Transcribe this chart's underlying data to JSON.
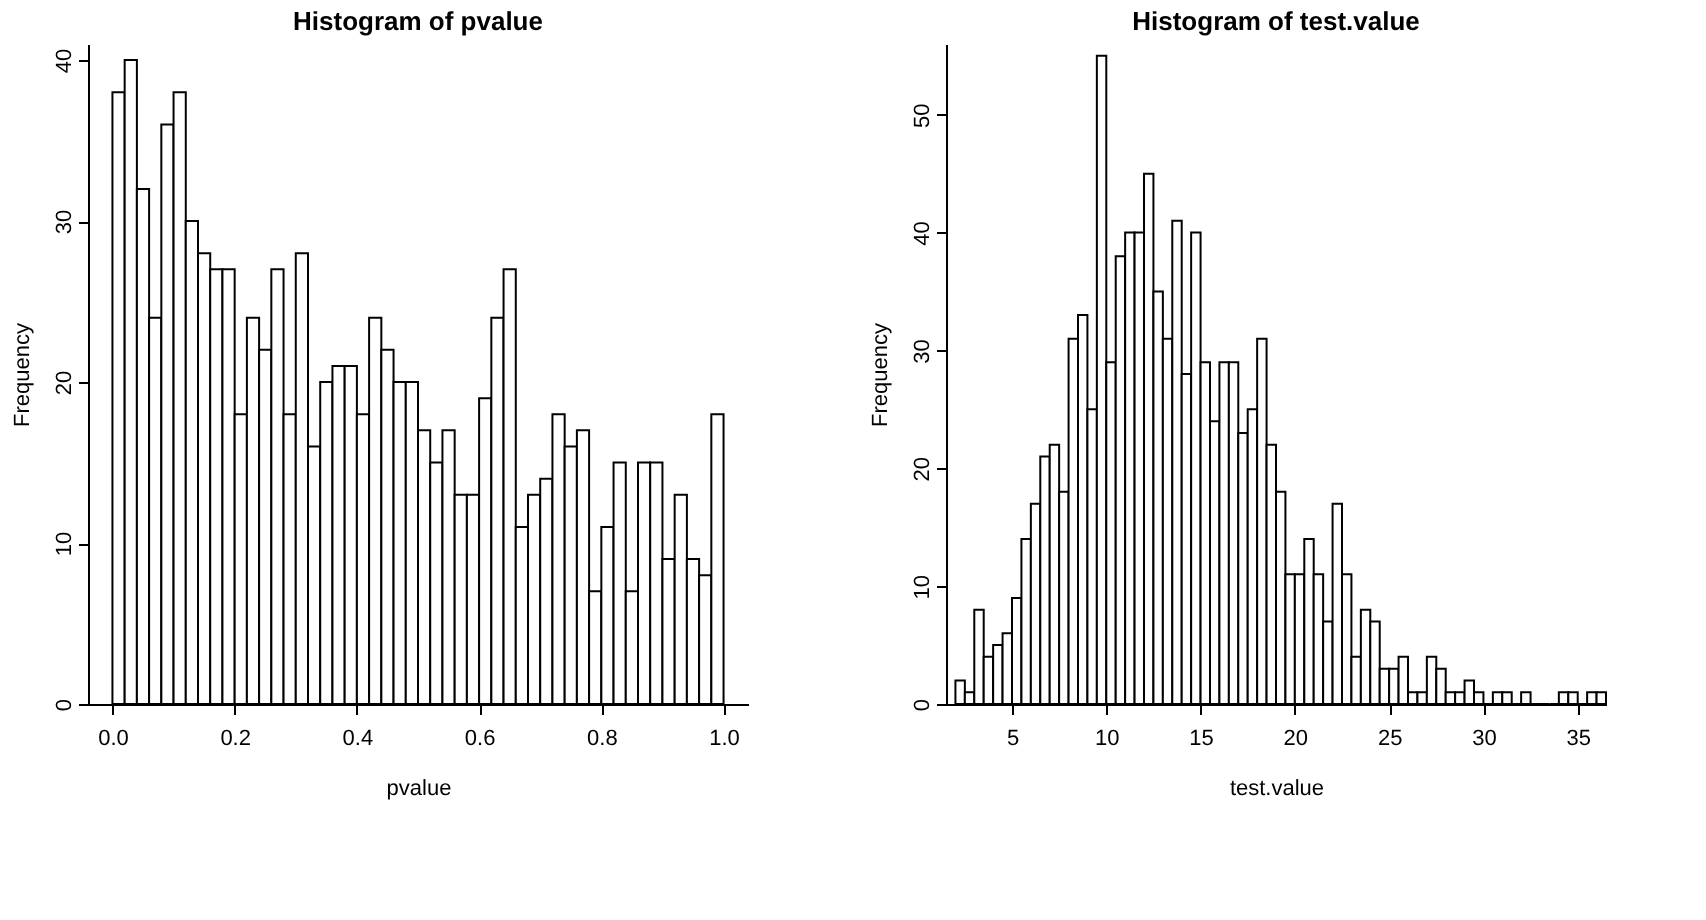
{
  "chart_data": [
    {
      "type": "histogram",
      "title": "Histogram of pvalue",
      "xlabel": "pvalue",
      "ylabel": "Frequency",
      "color": "#ffffff",
      "grid": false,
      "bins": [
        0.0,
        0.02,
        0.04,
        0.06,
        0.08,
        0.1,
        0.12,
        0.14,
        0.16,
        0.18,
        0.2,
        0.22,
        0.24,
        0.26,
        0.28,
        0.3,
        0.32,
        0.34,
        0.36,
        0.38,
        0.4,
        0.42,
        0.44,
        0.46,
        0.48,
        0.5,
        0.52,
        0.54,
        0.56,
        0.58,
        0.6,
        0.62,
        0.64,
        0.66,
        0.68,
        0.7,
        0.72,
        0.74,
        0.76,
        0.78,
        0.8,
        0.82,
        0.84,
        0.86,
        0.88,
        0.9,
        0.92,
        0.94,
        0.96,
        0.98,
        1.0
      ],
      "values": [
        38,
        40,
        32,
        24,
        36,
        38,
        30,
        28,
        27,
        27,
        18,
        24,
        22,
        27,
        18,
        28,
        16,
        20,
        21,
        21,
        18,
        24,
        22,
        20,
        20,
        17,
        15,
        17,
        13,
        13,
        19,
        24,
        27,
        11,
        13,
        14,
        18,
        16,
        17,
        7,
        11,
        15,
        7,
        15,
        15,
        9,
        13,
        9,
        8,
        18
      ],
      "xlim": [
        -0.04,
        1.04
      ],
      "ylim": [
        0,
        41
      ],
      "xticks": [
        {
          "value": 0,
          "label": "0.0"
        },
        0.2,
        0.4,
        0.6,
        0.8,
        {
          "value": 1,
          "label": "1.0"
        }
      ],
      "yticks": [
        0,
        10,
        20,
        30,
        40
      ]
    },
    {
      "type": "histogram",
      "title": "Histogram of test.value",
      "xlabel": "test.value",
      "ylabel": "Frequency",
      "color": "#ffffff",
      "grid": false,
      "bins": [
        2.0,
        2.5,
        3.0,
        3.5,
        4.0,
        4.5,
        5.0,
        5.5,
        6.0,
        6.5,
        7.0,
        7.5,
        8.0,
        8.5,
        9.0,
        9.5,
        10.0,
        10.5,
        11.0,
        11.5,
        12.0,
        12.5,
        13.0,
        13.5,
        14.0,
        14.5,
        15.0,
        15.5,
        16.0,
        16.5,
        17.0,
        17.5,
        18.0,
        18.5,
        19.0,
        19.5,
        20.0,
        20.5,
        21.0,
        21.5,
        22.0,
        22.5,
        23.0,
        23.5,
        24.0,
        24.5,
        25.0,
        25.5,
        26.0,
        26.5,
        27.0,
        27.5,
        28.0,
        28.5,
        29.0,
        29.5,
        30.0,
        30.5,
        31.0,
        31.5,
        32.0,
        32.5,
        33.0,
        33.5,
        34.0,
        34.5,
        35.0,
        35.5,
        36.0,
        36.5
      ],
      "values": [
        2,
        1,
        8,
        4,
        5,
        6,
        9,
        14,
        17,
        21,
        22,
        18,
        31,
        33,
        25,
        55,
        29,
        38,
        40,
        40,
        45,
        35,
        31,
        41,
        28,
        40,
        29,
        24,
        29,
        29,
        23,
        25,
        31,
        22,
        18,
        11,
        11,
        14,
        11,
        7,
        17,
        11,
        4,
        8,
        7,
        3,
        3,
        4,
        1,
        1,
        4,
        3,
        1,
        1,
        2,
        1,
        0,
        1,
        1,
        0,
        1,
        0,
        0,
        0,
        1,
        1,
        0,
        1,
        1
      ],
      "xlim": [
        1.5,
        36.5
      ],
      "ylim": [
        0,
        56
      ],
      "xticks": [
        5,
        10,
        15,
        20,
        25,
        30,
        35
      ],
      "yticks": [
        0,
        10,
        20,
        30,
        40,
        50
      ]
    }
  ]
}
